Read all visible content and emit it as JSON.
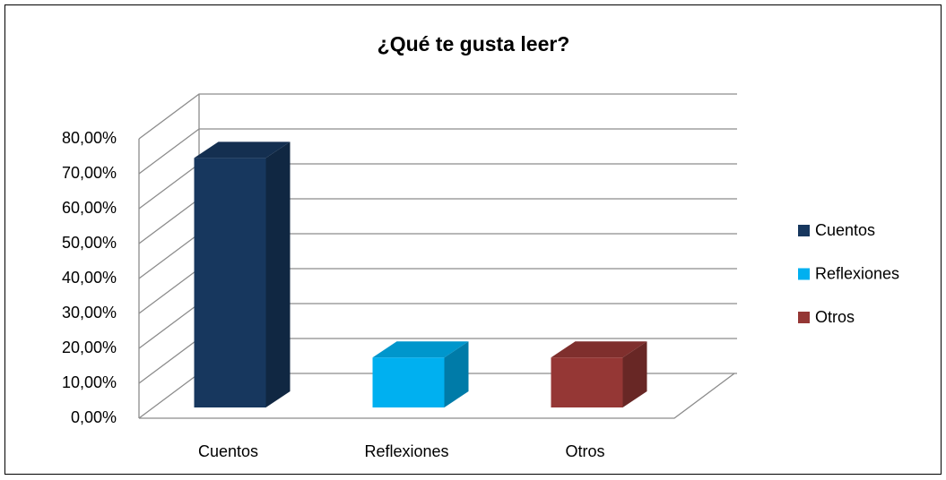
{
  "chart_data": {
    "type": "bar3d",
    "title": "¿Qué te gusta leer?",
    "categories": [
      "Cuentos",
      "Reflexiones",
      "Otros"
    ],
    "values": [
      71.43,
      14.29,
      14.29
    ],
    "colors": [
      "#17375e",
      "#00b0f0",
      "#953735"
    ],
    "ylim": [
      0,
      80
    ],
    "yticks": [
      {
        "value": 0,
        "label": "0,00%"
      },
      {
        "value": 10,
        "label": "10,00%"
      },
      {
        "value": 20,
        "label": "20,00%"
      },
      {
        "value": 30,
        "label": "30,00%"
      },
      {
        "value": 40,
        "label": "40,00%"
      },
      {
        "value": 50,
        "label": "50,00%"
      },
      {
        "value": 60,
        "label": "60,00%"
      },
      {
        "value": 70,
        "label": "70,00%"
      },
      {
        "value": 80,
        "label": "80,00%"
      }
    ],
    "grid": true,
    "legend": "right"
  }
}
